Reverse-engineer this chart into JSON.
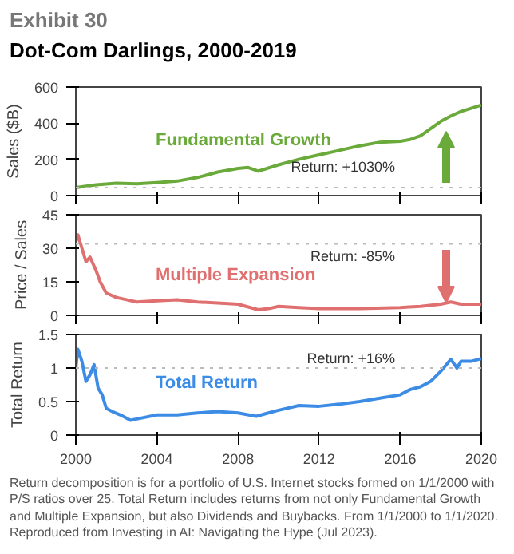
{
  "chart_data": [
    {
      "type": "line",
      "subtitle": "Exhibit 30",
      "title": "Dot-Com Darlings, 2000-2019",
      "ylabel": "Sales ($B)",
      "xlim": [
        2000,
        2020
      ],
      "xticks": [
        2000,
        2004,
        2008,
        2012,
        2016,
        2020
      ],
      "ylim": [
        0,
        600
      ],
      "yticks": [
        0,
        200,
        400,
        600
      ],
      "tick_labels": "y",
      "x": [
        2000,
        2001,
        2002,
        2003,
        2004,
        2005,
        2006,
        2007,
        2008,
        2008.5,
        2009,
        2010,
        2011,
        2012,
        2013,
        2014,
        2015,
        2016,
        2016.5,
        2017,
        2017.5,
        2018,
        2018.5,
        2019,
        2020
      ],
      "series": [
        {
          "name": "Fundamental Growth",
          "color": "#6aaa3a",
          "values": [
            44,
            60,
            68,
            65,
            72,
            80,
            100,
            130,
            150,
            155,
            135,
            170,
            200,
            225,
            250,
            275,
            295,
            300,
            310,
            330,
            370,
            410,
            440,
            465,
            500
          ]
        }
      ],
      "ref_lines": [
        {
          "axis": "y",
          "value": 44,
          "color": "#bbbbbb",
          "line_style": "dotted"
        }
      ],
      "annotations": [
        "Return: +1030%"
      ]
    },
    {
      "type": "line",
      "ylabel": "Price / Sales",
      "xlim": [
        2000,
        2020
      ],
      "xticks": [
        2000,
        2004,
        2008,
        2012,
        2016,
        2020
      ],
      "ylim": [
        0,
        45
      ],
      "yticks": [
        0,
        15,
        30,
        45
      ],
      "tick_labels": "y",
      "x": [
        2000,
        2000.1,
        2000.3,
        2000.5,
        2000.7,
        2001,
        2001.2,
        2001.5,
        2002,
        2002.5,
        2003,
        2004,
        2005,
        2006,
        2007,
        2008,
        2009,
        2009.5,
        2010,
        2011,
        2012,
        2014,
        2016,
        2017,
        2018,
        2018.5,
        2019,
        2020
      ],
      "series": [
        {
          "name": "Multiple Expansion",
          "color": "#e07070",
          "values": [
            33,
            36,
            30,
            24,
            26,
            20,
            15,
            10,
            8,
            7,
            6,
            6.5,
            7,
            6,
            5.5,
            5,
            2.5,
            3,
            4,
            3.5,
            3,
            3,
            3.5,
            4,
            5,
            6,
            5,
            5
          ]
        }
      ],
      "ref_lines": [
        {
          "axis": "y",
          "value": 32,
          "color": "#bbbbbb",
          "line_style": "dotted"
        }
      ],
      "annotations": [
        "Return: -85%"
      ]
    },
    {
      "type": "line",
      "ylabel": "Total Return",
      "xlim": [
        2000,
        2020
      ],
      "xticks": [
        2000,
        2004,
        2008,
        2012,
        2016,
        2020
      ],
      "ylim": [
        0,
        1.5
      ],
      "yticks": [
        0,
        0.5,
        1,
        1.5
      ],
      "x": [
        2000,
        2000.1,
        2000.3,
        2000.5,
        2000.7,
        2000.9,
        2001.1,
        2001.3,
        2001.5,
        2001.8,
        2002.2,
        2002.7,
        2003,
        2004,
        2005,
        2006,
        2007,
        2008,
        2008.9,
        2009.5,
        2010,
        2011,
        2012,
        2013,
        2014,
        2015,
        2016,
        2016.5,
        2017,
        2017.5,
        2018,
        2018.5,
        2018.8,
        2019,
        2019.5,
        2020
      ],
      "series": [
        {
          "name": "Total Return",
          "color": "#3c8ce6",
          "values": [
            1.0,
            1.28,
            1.1,
            0.8,
            0.9,
            1.05,
            0.7,
            0.6,
            0.4,
            0.35,
            0.3,
            0.22,
            0.24,
            0.3,
            0.3,
            0.33,
            0.35,
            0.33,
            0.28,
            0.33,
            0.37,
            0.44,
            0.43,
            0.46,
            0.5,
            0.55,
            0.6,
            0.68,
            0.72,
            0.8,
            0.95,
            1.13,
            1.0,
            1.1,
            1.1,
            1.14
          ]
        }
      ],
      "ref_lines": [
        {
          "axis": "y",
          "value": 1,
          "color": "#bbbbbb",
          "line_style": "dotted"
        }
      ],
      "annotations": [
        "Return: +16%",
        "Return decomposition is for a portfolio of U.S. Internet stocks formed on 1/1/2000 with P/S ratios over 25. Total Return includes returns from not only Fundamental Growth and Multiple Expansion, but also Dividends and Buybacks. From 1/1/2000 to 1/1/2020. Reproduced from Investing in AI: Navigating the Hype (Jul 2023)."
      ]
    }
  ]
}
